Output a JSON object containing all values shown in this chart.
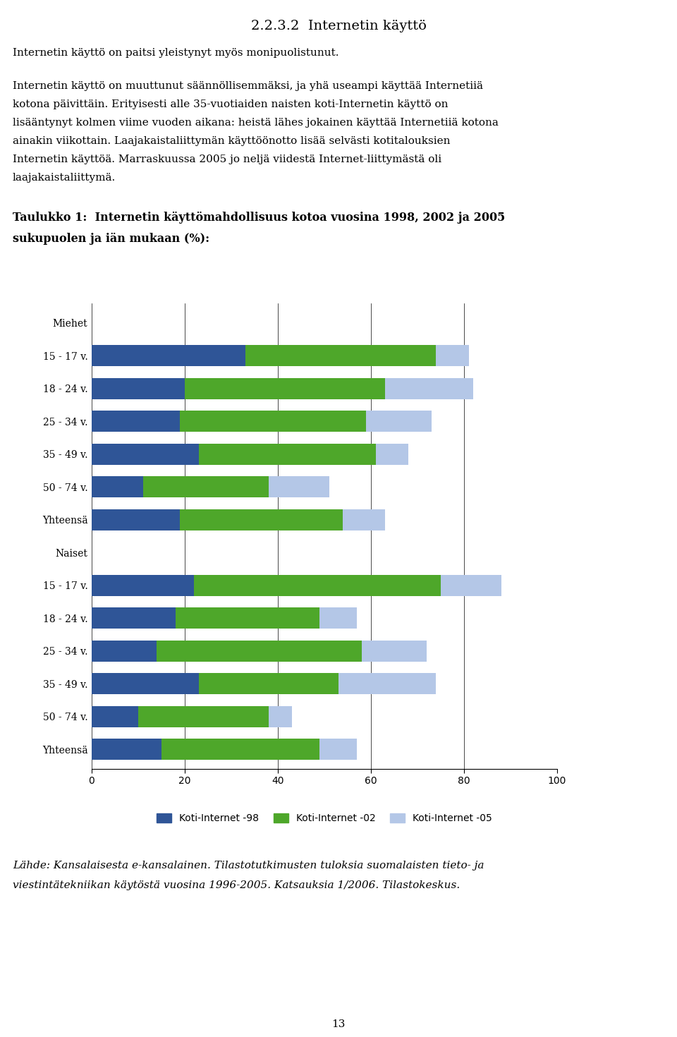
{
  "title": "2.2.3.2  Internetin käyttö",
  "para1": "Internetin käyttö on paitsi yleistynyt myös monipuolistunut.",
  "para2_lines": [
    "Internetin käyttö on muuttunut säännöllisemmäksi, ja yhä useampi käyttää Internetiiä",
    "kotona päivittäin. Erityisesti alle 35-vuotiaiden naisten koti-Internetin käyttö on",
    "lisääntynyt kolmen viime vuoden aikana: heistä lähes jokainen käyttää Internetiiä kotona",
    "ainakin viikottain. Laajakaistaliittymän käyttöönotto lisää selvästi kotitalouksien",
    "Internetin käyttöä. Marraskuussa 2005 jo neljä viidestä Internet-liittymästä oli",
    "laajakaistaliittymä."
  ],
  "table_title_line1": "Taulukko 1:  Internetin käyttömahdollisuus kotoa vuosina 1998, 2002 ja 2005",
  "table_title_line2": "sukupuolen ja iän mukaan (%):",
  "source_line1": "Lähde: Kansalaisesta e-kansalainen. Tilastotutkimusten tuloksia suomalaisten tieto- ja",
  "source_line2": "viestintätekniikan käytöstä vuosina 1996-2005. Katsauksia 1/2006. Tilastokeskus.",
  "page_number": "13",
  "categories": [
    "Miehet",
    "15 - 17 v.",
    "18 - 24 v.",
    "25 - 34 v.",
    "35 - 49 v.",
    "50 - 74 v.",
    "Yhteensä",
    "Naiset",
    "15 - 17 v.",
    "18 - 24 v.",
    "25 - 34 v.",
    "35 - 49 v.",
    "50 - 74 v.",
    "Yhteensä"
  ],
  "is_header": [
    true,
    false,
    false,
    false,
    false,
    false,
    false,
    true,
    false,
    false,
    false,
    false,
    false,
    false
  ],
  "values_98": [
    0,
    33,
    20,
    19,
    23,
    11,
    19,
    0,
    22,
    18,
    14,
    23,
    10,
    15
  ],
  "values_02": [
    0,
    41,
    43,
    40,
    38,
    27,
    35,
    0,
    53,
    31,
    44,
    30,
    28,
    34
  ],
  "values_05": [
    0,
    7,
    19,
    14,
    7,
    13,
    9,
    0,
    13,
    8,
    14,
    21,
    5,
    8
  ],
  "color_98": "#2f5597",
  "color_02": "#4ea72a",
  "color_05": "#b4c7e7",
  "xlim": [
    0,
    100
  ],
  "xticks": [
    0,
    20,
    40,
    60,
    80,
    100
  ],
  "legend_labels": [
    "Koti-Internet -98",
    "Koti-Internet -02",
    "Koti-Internet -05"
  ]
}
